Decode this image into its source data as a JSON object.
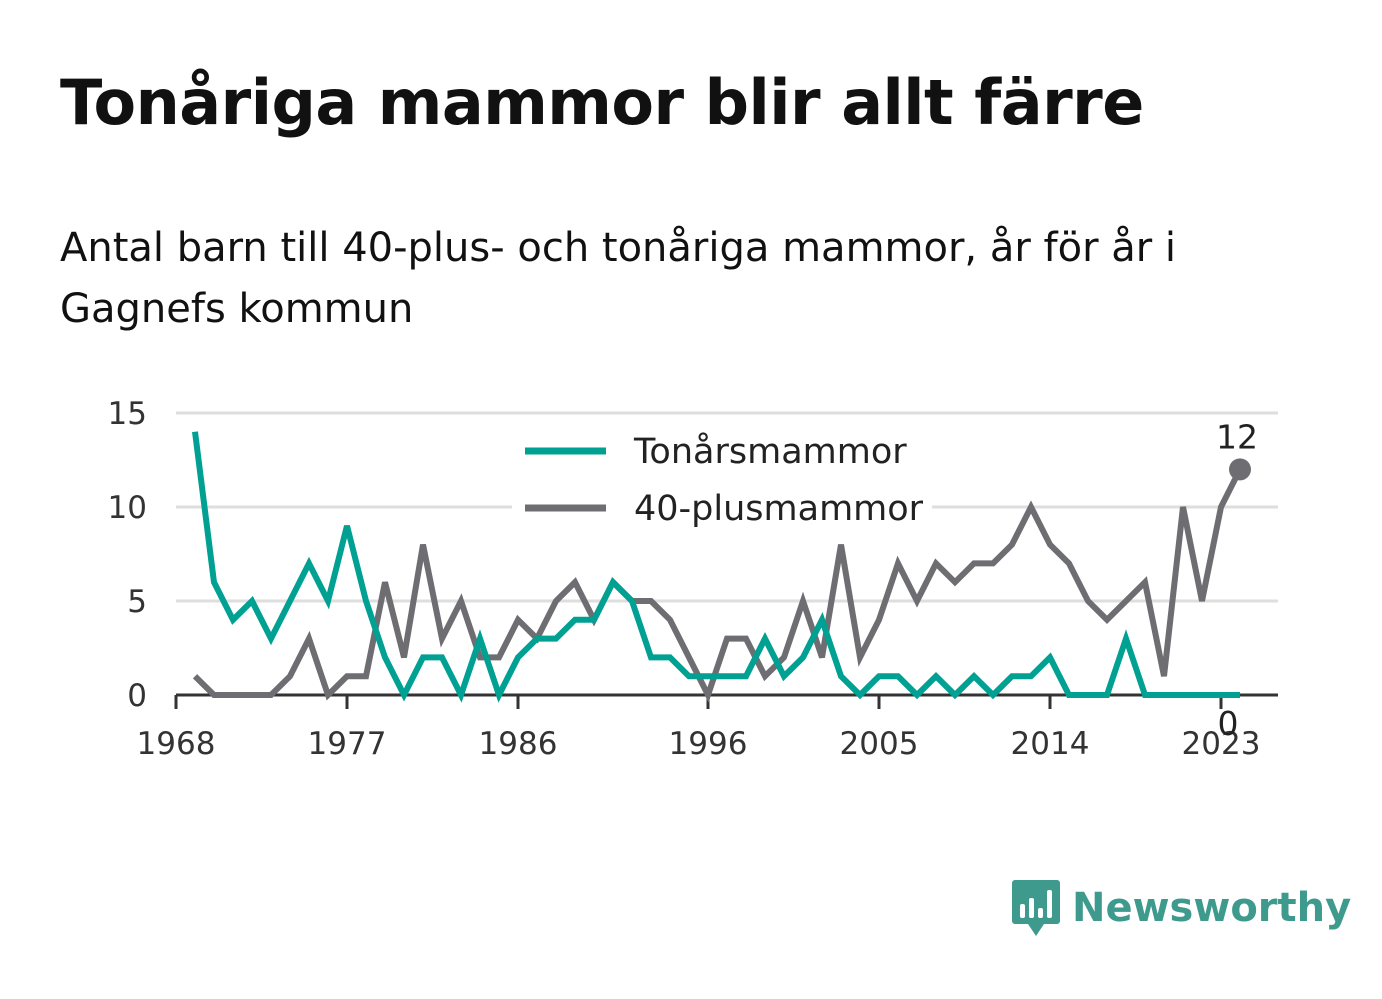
{
  "title": "Tonåriga mammor blir allt färre",
  "subtitle": "Antal barn till 40-plus- och tonåriga mammor, år för år i Gagnefs kommun",
  "brand": {
    "name": "Newsworthy",
    "icon": "newsworthy-logo-icon",
    "color": "#3f9a8e"
  },
  "chart_data": {
    "type": "line",
    "x": [
      1969,
      1970,
      1971,
      1972,
      1973,
      1974,
      1975,
      1976,
      1977,
      1978,
      1979,
      1980,
      1981,
      1982,
      1983,
      1984,
      1985,
      1986,
      1987,
      1988,
      1989,
      1990,
      1991,
      1992,
      1993,
      1994,
      1995,
      1996,
      1997,
      1998,
      1999,
      2000,
      2001,
      2002,
      2003,
      2004,
      2005,
      2006,
      2007,
      2008,
      2009,
      2010,
      2011,
      2012,
      2013,
      2014,
      2015,
      2016,
      2017,
      2018,
      2019,
      2020,
      2021,
      2022,
      2023,
      2024
    ],
    "series": [
      {
        "name": "Tonårsmammor",
        "color": "#00a093",
        "values": [
          14,
          6,
          4,
          5,
          3,
          5,
          7,
          5,
          9,
          5,
          2,
          0,
          2,
          2,
          0,
          3,
          0,
          2,
          3,
          3,
          4,
          4,
          6,
          5,
          2,
          2,
          1,
          1,
          1,
          1,
          3,
          1,
          2,
          4,
          1,
          0,
          1,
          1,
          0,
          1,
          0,
          1,
          0,
          1,
          1,
          2,
          0,
          0,
          0,
          3,
          0,
          0,
          0,
          0,
          0,
          0
        ]
      },
      {
        "name": "40-plusmammor",
        "color": "#6e6d72",
        "values": [
          1,
          0,
          0,
          0,
          0,
          1,
          3,
          0,
          1,
          1,
          6,
          2,
          8,
          3,
          5,
          2,
          2,
          4,
          3,
          5,
          6,
          4,
          6,
          5,
          5,
          4,
          2,
          0,
          3,
          3,
          1,
          2,
          5,
          2,
          8,
          2,
          4,
          7,
          5,
          7,
          6,
          7,
          7,
          8,
          10,
          8,
          7,
          5,
          4,
          5,
          6,
          1,
          10,
          5,
          10,
          12
        ]
      }
    ],
    "end_labels": {
      "40-plusmammor": "12",
      "Tonårsmammor": "0"
    },
    "x_ticks": [
      "1968",
      "1977",
      "1986",
      "1996",
      "2005",
      "2014",
      "2023"
    ],
    "y_ticks": [
      "0",
      "5",
      "10",
      "15"
    ],
    "ylim": [
      0,
      15
    ],
    "xlim": [
      1968,
      2026
    ],
    "grid": true,
    "legend_position": "top-center",
    "xlabel": "",
    "ylabel": ""
  }
}
